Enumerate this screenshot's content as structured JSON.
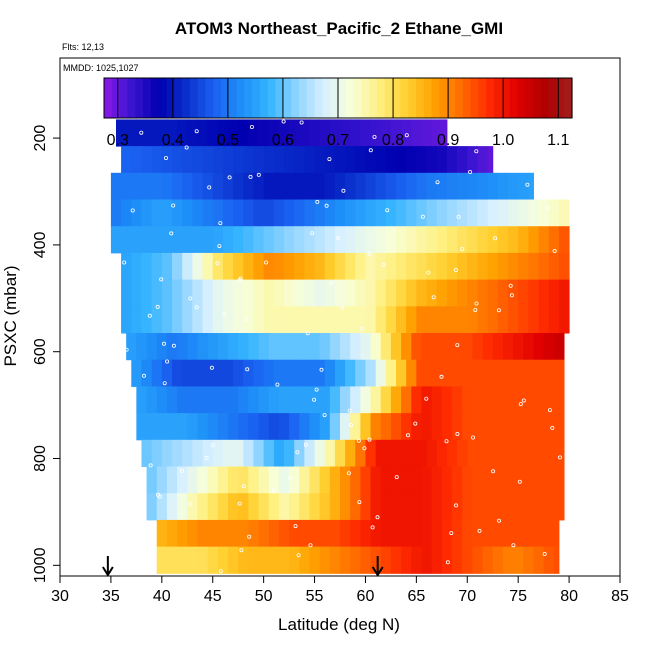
{
  "chart_data": {
    "type": "heatmap",
    "title": "ATOM3 Northeast_Pacific_2 Ethane_GMI",
    "flights_label": "Flts: 12,13",
    "dates_label": "MMDD: 1025,1027",
    "xlabel": "Latitude (deg N)",
    "ylabel": "PSXC (mbar)",
    "xlim": [
      30,
      85
    ],
    "ylim": [
      1020,
      50
    ],
    "x_ticks": [
      30,
      35,
      40,
      45,
      50,
      55,
      60,
      65,
      70,
      75,
      80,
      85
    ],
    "y_ticks": [
      200,
      400,
      600,
      800,
      1000
    ],
    "colorbar": {
      "min": 0.275,
      "max": 1.125,
      "ticks": [
        0.3,
        0.4,
        0.5,
        0.6,
        0.7,
        0.8,
        0.9,
        1.0,
        1.1
      ],
      "tick_labels": [
        "0.3",
        "0.4",
        "0.5",
        "0.6",
        "0.7",
        "0.8",
        "0.9",
        "1.0",
        "1.1"
      ],
      "colors": [
        "#8b1ae6",
        "#3a14d0",
        "#0000b0",
        "#0a2fcc",
        "#1a60f0",
        "#1e8ff8",
        "#35b4ff",
        "#8fd4ff",
        "#d8f0ff",
        "#f8ffd8",
        "#fff080",
        "#ffd030",
        "#ffa000",
        "#ff6a00",
        "#ff2a00",
        "#e00000",
        "#b00000",
        "#a02020"
      ]
    },
    "rows": [
      {
        "p": 190,
        "lat_start": 35.5,
        "lat_end": 68.0,
        "values": [
          0.4,
          0.4,
          0.38,
          0.36,
          0.34,
          0.32,
          0.3
        ]
      },
      {
        "p": 240,
        "lat_start": 36.0,
        "lat_end": 72.5,
        "values": [
          0.48,
          0.46,
          0.44,
          0.42,
          0.4,
          0.38,
          0.36,
          0.3
        ]
      },
      {
        "p": 290,
        "lat_start": 35.0,
        "lat_end": 76.5,
        "values": [
          0.5,
          0.5,
          0.45,
          0.4,
          0.4,
          0.45,
          0.5,
          0.52,
          0.55
        ]
      },
      {
        "p": 340,
        "lat_start": 35.0,
        "lat_end": 80.0,
        "values": [
          0.5,
          0.55,
          0.5,
          0.45,
          0.5,
          0.55,
          0.6,
          0.65,
          0.7,
          0.75
        ]
      },
      {
        "p": 390,
        "lat_start": 35.0,
        "lat_end": 80.0,
        "values": [
          0.55,
          0.55,
          0.55,
          0.6,
          0.65,
          0.7,
          0.75,
          0.8,
          0.85,
          0.95
        ]
      },
      {
        "p": 440,
        "lat_start": 36.0,
        "lat_end": 80.0,
        "values": [
          0.55,
          0.6,
          0.8,
          0.9,
          0.85,
          0.75,
          0.8,
          0.85,
          0.9,
          0.95
        ]
      },
      {
        "p": 490,
        "lat_start": 36.0,
        "lat_end": 80.0,
        "values": [
          0.55,
          0.6,
          0.7,
          0.75,
          0.7,
          0.75,
          0.85,
          0.9,
          0.95,
          1.0
        ]
      },
      {
        "p": 540,
        "lat_start": 36.0,
        "lat_end": 80.0,
        "values": [
          0.55,
          0.6,
          0.7,
          0.75,
          0.75,
          0.75,
          0.9,
          0.9,
          0.95,
          1.0
        ]
      },
      {
        "p": 590,
        "lat_start": 36.5,
        "lat_end": 79.5,
        "values": [
          0.55,
          0.5,
          0.55,
          0.6,
          0.6,
          0.7,
          0.95,
          0.95,
          1.0,
          1.05
        ]
      },
      {
        "p": 640,
        "lat_start": 37.0,
        "lat_end": 79.5,
        "values": [
          0.55,
          0.45,
          0.45,
          0.5,
          0.5,
          0.65,
          0.95,
          0.95,
          0.95,
          0.95
        ]
      },
      {
        "p": 690,
        "lat_start": 37.5,
        "lat_end": 79.5,
        "values": [
          0.55,
          0.5,
          0.5,
          0.55,
          0.55,
          0.75,
          1.0,
          0.95,
          0.95,
          0.95
        ]
      },
      {
        "p": 740,
        "lat_start": 37.5,
        "lat_end": 79.5,
        "values": [
          0.55,
          0.55,
          0.5,
          0.45,
          0.55,
          0.9,
          1.0,
          0.95,
          0.95,
          0.95
        ]
      },
      {
        "p": 790,
        "lat_start": 38.0,
        "lat_end": 79.5,
        "values": [
          0.6,
          0.65,
          0.7,
          0.55,
          0.75,
          1.0,
          1.0,
          0.95,
          0.95,
          0.95
        ]
      },
      {
        "p": 840,
        "lat_start": 38.5,
        "lat_end": 79.5,
        "values": [
          0.6,
          0.7,
          0.8,
          0.7,
          0.85,
          1.0,
          1.0,
          0.95,
          0.95,
          0.95
        ]
      },
      {
        "p": 890,
        "lat_start": 38.5,
        "lat_end": 79.5,
        "values": [
          0.6,
          0.75,
          0.85,
          0.75,
          0.85,
          1.0,
          1.0,
          0.95,
          0.95,
          0.95
        ]
      },
      {
        "p": 940,
        "lat_start": 39.5,
        "lat_end": 79.0,
        "values": [
          0.85,
          0.9,
          0.9,
          0.95,
          0.95,
          1.0,
          1.0,
          0.95,
          0.95,
          0.95
        ]
      },
      {
        "p": 990,
        "lat_start": 39.5,
        "lat_end": 79.0,
        "values": [
          0.8,
          0.8,
          0.85,
          0.85,
          0.9,
          0.95,
          1.0,
          0.95,
          0.9,
          0.95
        ]
      }
    ],
    "arrows_lat": [
      34.7,
      61.2
    ]
  }
}
